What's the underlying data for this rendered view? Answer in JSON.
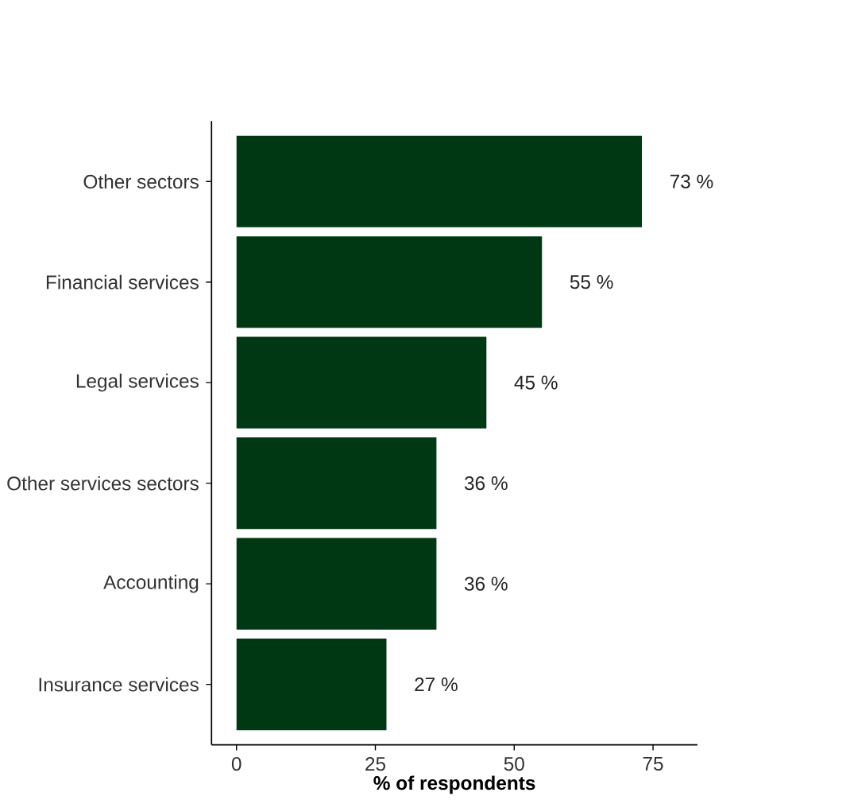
{
  "chart_data": {
    "type": "bar",
    "orientation": "horizontal",
    "categories": [
      "Other sectors",
      "Financial services",
      "Legal services",
      "Other services sectors",
      "Accounting",
      "Insurance services"
    ],
    "values": [
      73,
      55,
      45,
      36,
      36,
      27
    ],
    "value_labels": [
      "73 %",
      "55 %",
      "45 %",
      "36 %",
      "36 %",
      "27 %"
    ],
    "color": "#003814",
    "xlim": [
      -4.5,
      83
    ],
    "xticks": [
      0,
      25,
      50,
      75
    ],
    "xlabel": "% of respondents"
  }
}
